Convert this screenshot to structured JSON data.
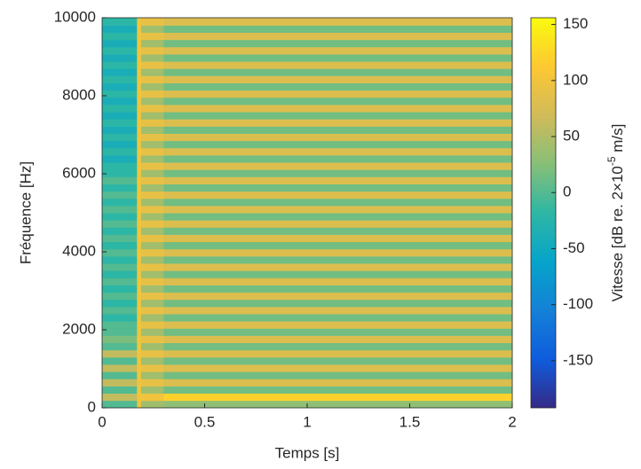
{
  "chart_data": {
    "type": "heatmap",
    "xlabel": "Temps [s]",
    "ylabel": "Fréquence [Hz]",
    "colorbar_label": [
      "Vitesse [dB re. 2×10",
      "-5",
      " m/s]"
    ],
    "x": [
      0,
      0.17,
      0.19,
      0.3,
      2
    ],
    "y": [
      0,
      185,
      370,
      555,
      740,
      925,
      1110,
      1295,
      1480,
      1665,
      1850,
      2035,
      2220,
      2405,
      2590,
      2775,
      2960,
      3145,
      3330,
      3515,
      3700,
      3885,
      4070,
      4255,
      4440,
      4625,
      4810,
      4995,
      5180,
      5365,
      5550,
      5735,
      5920,
      6105,
      6290,
      6475,
      6660,
      6845,
      7030,
      7215,
      7400,
      7585,
      7770,
      7955,
      8140,
      8325,
      8510,
      8695,
      8880,
      9065,
      9250,
      9435,
      9620,
      9805,
      10000
    ],
    "z": [
      [
        0,
        100,
        40,
        30
      ],
      [
        60,
        100,
        100,
        120
      ],
      [
        0,
        100,
        40,
        15
      ],
      [
        60,
        100,
        90,
        80
      ],
      [
        0,
        100,
        40,
        15
      ],
      [
        60,
        100,
        90,
        80
      ],
      [
        0,
        100,
        40,
        15
      ],
      [
        60,
        100,
        90,
        80
      ],
      [
        0,
        100,
        40,
        15
      ],
      [
        20,
        100,
        90,
        80
      ],
      [
        0,
        100,
        40,
        15
      ],
      [
        0,
        100,
        90,
        80
      ],
      [
        -20,
        100,
        40,
        15
      ],
      [
        0,
        100,
        90,
        80
      ],
      [
        -20,
        100,
        40,
        15
      ],
      [
        0,
        100,
        90,
        80
      ],
      [
        -20,
        100,
        40,
        15
      ],
      [
        0,
        100,
        90,
        80
      ],
      [
        -20,
        100,
        40,
        15
      ],
      [
        0,
        100,
        90,
        80
      ],
      [
        -20,
        100,
        40,
        15
      ],
      [
        0,
        100,
        90,
        80
      ],
      [
        -20,
        100,
        40,
        15
      ],
      [
        0,
        100,
        90,
        80
      ],
      [
        -20,
        100,
        40,
        15
      ],
      [
        0,
        100,
        90,
        80
      ],
      [
        -20,
        100,
        40,
        15
      ],
      [
        0,
        100,
        90,
        80
      ],
      [
        -20,
        100,
        40,
        15
      ],
      [
        0,
        100,
        90,
        80
      ],
      [
        -20,
        100,
        40,
        15
      ],
      [
        0,
        100,
        90,
        80
      ],
      [
        -20,
        100,
        40,
        15
      ],
      [
        -20,
        100,
        90,
        80
      ],
      [
        -40,
        100,
        40,
        15
      ],
      [
        -20,
        100,
        90,
        80
      ],
      [
        -40,
        100,
        40,
        15
      ],
      [
        -20,
        100,
        90,
        80
      ],
      [
        -40,
        100,
        40,
        15
      ],
      [
        -20,
        100,
        90,
        80
      ],
      [
        -40,
        100,
        40,
        15
      ],
      [
        -20,
        100,
        90,
        80
      ],
      [
        -40,
        100,
        40,
        15
      ],
      [
        -20,
        100,
        90,
        80
      ],
      [
        -40,
        100,
        40,
        15
      ],
      [
        -20,
        100,
        90,
        80
      ],
      [
        -40,
        100,
        40,
        15
      ],
      [
        -20,
        100,
        90,
        80
      ],
      [
        -40,
        100,
        40,
        15
      ],
      [
        -20,
        100,
        90,
        80
      ],
      [
        -40,
        100,
        40,
        15
      ],
      [
        -20,
        100,
        90,
        80
      ],
      [
        -40,
        100,
        40,
        15
      ],
      [
        -20,
        100,
        90,
        80
      ]
    ],
    "xlim": [
      0,
      2
    ],
    "ylim": [
      0,
      10000
    ],
    "xticks": [
      0,
      0.5,
      1,
      1.5,
      2
    ],
    "yticks": [
      0,
      2000,
      4000,
      6000,
      8000,
      10000
    ],
    "clim": [
      -192,
      156
    ],
    "cticks": [
      -150,
      -100,
      -50,
      0,
      50,
      100,
      150
    ],
    "colormap": [
      "#352a87",
      "#0f5cdd",
      "#1481d6",
      "#06a4ca",
      "#2eb7a4",
      "#87bf77",
      "#d1bb59",
      "#fec832",
      "#f9fb0e"
    ]
  }
}
